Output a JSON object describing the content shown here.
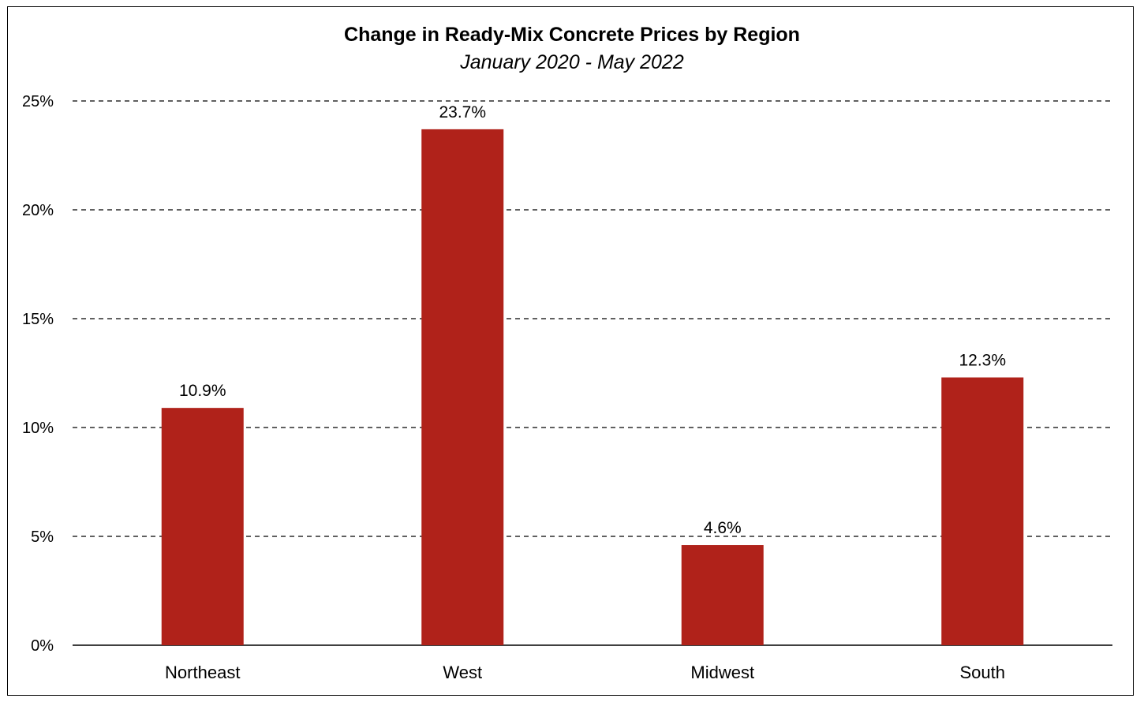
{
  "chart_data": {
    "type": "bar",
    "title": "Change in Ready-Mix Concrete Prices by Region",
    "subtitle": "January 2020 - May 2022",
    "categories": [
      "Northeast",
      "West",
      "Midwest",
      "South"
    ],
    "values": [
      10.9,
      23.7,
      4.6,
      12.3
    ],
    "data_labels": [
      "10.9%",
      "23.7%",
      "4.6%",
      "12.3%"
    ],
    "ylim": [
      0,
      25
    ],
    "yticks": [
      0,
      5,
      10,
      15,
      20,
      25
    ],
    "ytick_labels": [
      "0%",
      "5%",
      "10%",
      "15%",
      "20%",
      "25%"
    ],
    "grid": "dashed horizontal",
    "legend": "none",
    "bar_color": "#B0221A"
  }
}
